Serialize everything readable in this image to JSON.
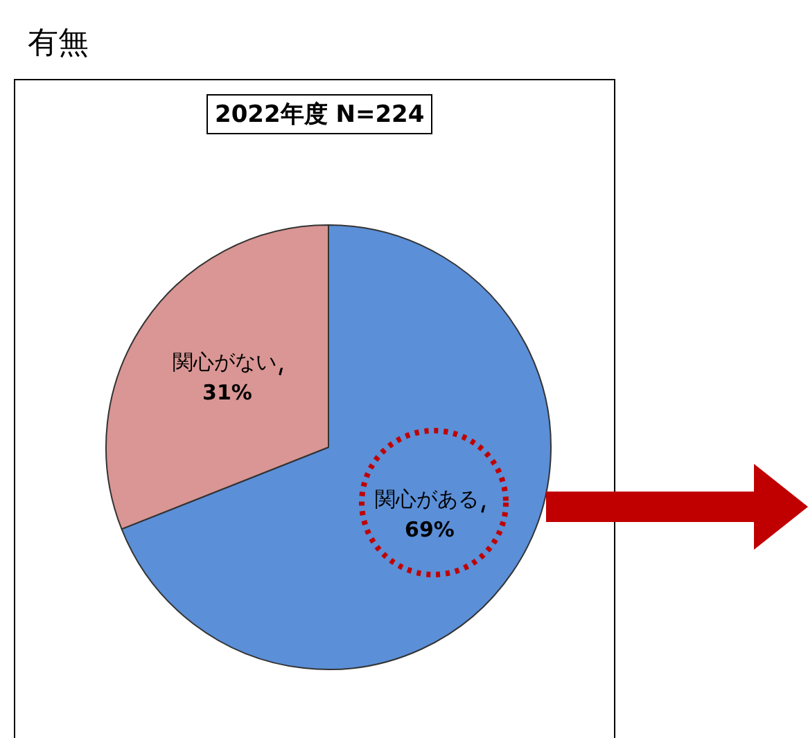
{
  "chart_data": {
    "type": "pie",
    "title": "2022年度 N=224",
    "annotations": [
      "有無"
    ],
    "categories": [
      "関心がある",
      "関心がない"
    ],
    "values": [
      69,
      31
    ],
    "colors": [
      "#5b8fd8",
      "#d99694"
    ],
    "value_labels": [
      "69%",
      "31%"
    ],
    "legend": false
  }
}
